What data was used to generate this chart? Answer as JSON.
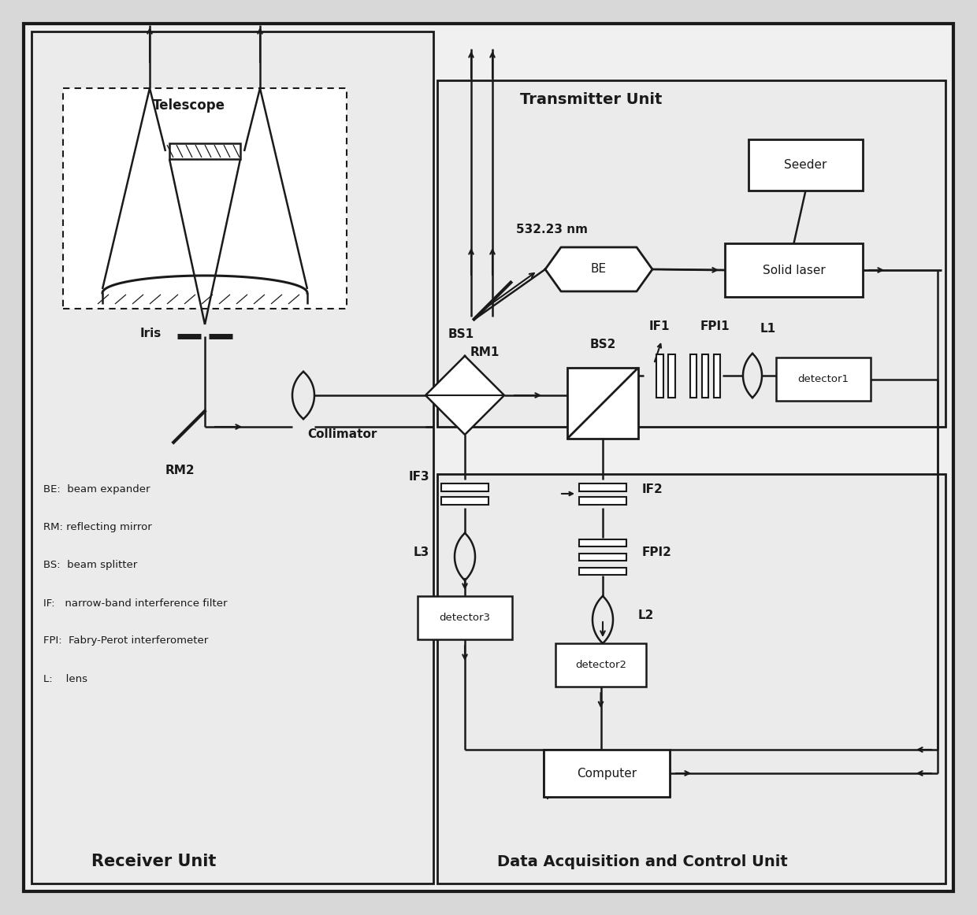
{
  "lc": "#1a1a1a",
  "bg": "#d8d8d8",
  "white": "#ffffff",
  "box_bg": "#efefef",
  "labels": {
    "transmitter": "Transmitter Unit",
    "receiver": "Receiver Unit",
    "data_acq": "Data Acquisition and Control Unit",
    "telescope": "Telescope",
    "iris": "Iris",
    "collimator": "Collimator",
    "rm1": "RM1",
    "rm2": "RM2",
    "bs1": "BS1",
    "bs2": "BS2",
    "if1": "IF1",
    "if2": "IF2",
    "if3": "IF3",
    "fpi1": "FPI1",
    "fpi2": "FPI2",
    "l1": "L1",
    "l2": "L2",
    "l3": "L3",
    "be": "BE",
    "seeder": "Seeder",
    "solid_laser": "Solid laser",
    "detector1": "detector1",
    "detector2": "detector2",
    "detector3": "detector3",
    "computer": "Computer",
    "wavelength": "532.23 nm"
  },
  "legend": [
    "BE:  beam expander",
    "RM: reflecting mirror",
    "BS:  beam splitter",
    "IF:   narrow-band interference filter",
    "FPI:  Fabry-Perot interferometer",
    "L:    lens"
  ]
}
